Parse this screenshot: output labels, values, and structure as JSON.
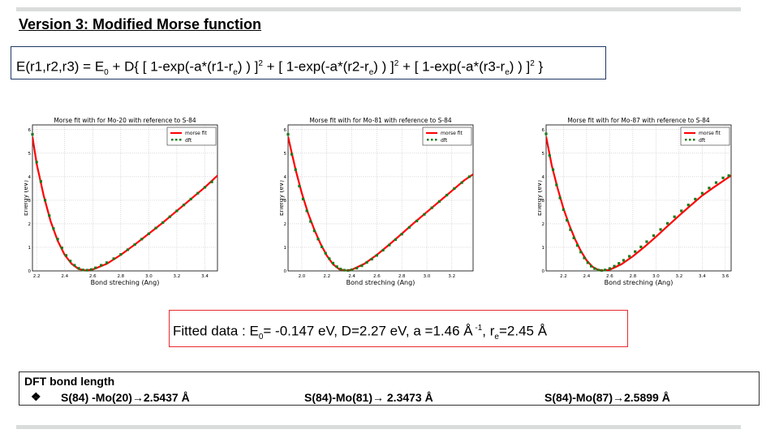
{
  "slide": {
    "title": "Version 3: Modified Morse function",
    "formula": {
      "p1": "E(r1,r2,r3) = E",
      "s1": "0",
      "p2": " + D{ [ 1-exp(-a*(r1-r",
      "s2": "e",
      "p3": ") ) ]",
      "e1": "2",
      "p4": " + [ 1-exp(-a*(r2-r",
      "s3": "e",
      "p5": ") ) ]",
      "e2": "2",
      "p6": " + [ 1-exp(-a*(r3-r",
      "s4": "e",
      "p7": ") ) ]",
      "e3": "2",
      "p8": " }"
    },
    "fitted": {
      "p1": "Fitted data : E",
      "s1": "0",
      "p2": "= -0.147 eV, D=2.27  eV, a =1.46  Å",
      "e1": " -1",
      "p3": ",  r",
      "s2": "e",
      "p4": "=2.45  Å"
    },
    "dft": {
      "title": "DFT bond length",
      "bullet": "❖",
      "entries": [
        "S(84) -Mo(20)→2.5437  Å",
        "S(84)-Mo(81)→ 2.3473  Å",
        "S(84)-Mo(87)→2.5899 Å"
      ]
    }
  },
  "colors": {
    "fit": "#ff0000",
    "dft": "#1a7a1a",
    "formula_border": "#1f3864",
    "fitted_border": "#e8292f",
    "rule": "#d9dcdb"
  },
  "chart_data": [
    {
      "type": "line",
      "title": "Morse fit with for Mo-20 with reference to S-84",
      "xlabel": "Bond streching (Ang)",
      "ylabel": "Energy (eV)",
      "xlim": [
        2.17,
        3.49
      ],
      "ylim": [
        0,
        6.2
      ],
      "xticks": [
        "2.2",
        "2.4",
        "2.6",
        "2.8",
        "3.0",
        "3.2",
        "3.4"
      ],
      "yticks": [
        "0",
        "1",
        "2",
        "3",
        "4",
        "5",
        "6"
      ],
      "grid": true,
      "legend_position": "top-right",
      "series": [
        {
          "name": "morse fit",
          "style": "line",
          "x": [
            2.17,
            2.2,
            2.25,
            2.3,
            2.35,
            2.4,
            2.45,
            2.5,
            2.55,
            2.6,
            2.7,
            2.8,
            2.9,
            3.0,
            3.1,
            3.2,
            3.3,
            3.4,
            3.49
          ],
          "y": [
            5.7,
            4.55,
            3.2,
            2.1,
            1.28,
            0.68,
            0.3,
            0.08,
            0.02,
            0.06,
            0.3,
            0.68,
            1.12,
            1.58,
            2.05,
            2.55,
            3.05,
            3.55,
            4.05
          ]
        },
        {
          "name": "dft",
          "style": "points",
          "x": [
            2.17,
            2.2,
            2.23,
            2.26,
            2.29,
            2.32,
            2.35,
            2.38,
            2.41,
            2.44,
            2.47,
            2.5,
            2.53,
            2.56,
            2.59,
            2.62,
            2.66,
            2.7,
            2.75,
            2.8,
            2.85,
            2.9,
            2.95,
            3.0,
            3.05,
            3.1,
            3.15,
            3.2,
            3.25,
            3.3,
            3.35,
            3.4,
            3.45
          ],
          "y": [
            5.8,
            4.62,
            3.8,
            3.0,
            2.35,
            1.8,
            1.35,
            0.98,
            0.66,
            0.42,
            0.24,
            0.11,
            0.04,
            0.03,
            0.06,
            0.13,
            0.24,
            0.35,
            0.52,
            0.7,
            0.9,
            1.12,
            1.35,
            1.58,
            1.82,
            2.05,
            2.3,
            2.55,
            2.8,
            3.05,
            3.3,
            3.55,
            3.78
          ]
        }
      ]
    },
    {
      "type": "line",
      "title": "Morse fit with for Mo-81 with reference to S-84",
      "xlabel": "Bond streching (Ang)",
      "ylabel": "Energy (eV)",
      "xlim": [
        1.89,
        3.37
      ],
      "ylim": [
        0,
        6.2
      ],
      "xticks": [
        "2.0",
        "2.2",
        "2.4",
        "2.6",
        "2.8",
        "3.0",
        "3.2"
      ],
      "yticks": [
        "0",
        "1",
        "2",
        "3",
        "4",
        "5",
        "6"
      ],
      "grid": true,
      "legend_position": "top-right",
      "series": [
        {
          "name": "morse fit",
          "style": "line",
          "x": [
            1.89,
            1.95,
            2.0,
            2.05,
            2.1,
            2.15,
            2.2,
            2.25,
            2.3,
            2.35,
            2.4,
            2.5,
            2.6,
            2.7,
            2.8,
            2.9,
            3.0,
            3.1,
            3.2,
            3.3,
            3.37
          ],
          "y": [
            5.7,
            4.3,
            3.3,
            2.45,
            1.75,
            1.15,
            0.65,
            0.28,
            0.07,
            0.01,
            0.05,
            0.3,
            0.68,
            1.12,
            1.58,
            2.05,
            2.5,
            2.95,
            3.4,
            3.85,
            4.1
          ]
        },
        {
          "name": "dft",
          "style": "points",
          "x": [
            1.89,
            1.92,
            1.95,
            1.98,
            2.01,
            2.04,
            2.07,
            2.1,
            2.13,
            2.16,
            2.19,
            2.22,
            2.25,
            2.28,
            2.31,
            2.34,
            2.37,
            2.4,
            2.44,
            2.48,
            2.52,
            2.56,
            2.6,
            2.65,
            2.7,
            2.75,
            2.8,
            2.86,
            2.92,
            2.98,
            3.04,
            3.1,
            3.16,
            3.22,
            3.28,
            3.34
          ],
          "y": [
            5.8,
            4.95,
            4.3,
            3.6,
            3.05,
            2.55,
            2.1,
            1.7,
            1.35,
            1.02,
            0.75,
            0.52,
            0.33,
            0.18,
            0.08,
            0.03,
            0.02,
            0.05,
            0.12,
            0.22,
            0.36,
            0.5,
            0.66,
            0.88,
            1.1,
            1.33,
            1.56,
            1.85,
            2.12,
            2.4,
            2.68,
            2.95,
            3.22,
            3.5,
            3.75,
            4.0
          ]
        }
      ]
    },
    {
      "type": "line",
      "title": "Morse fit with for Mo-87 with reference to S-84",
      "xlabel": "Bond streching (Ang)",
      "ylabel": "Energy (eV)",
      "xlim": [
        2.05,
        3.65
      ],
      "ylim": [
        0,
        6.2
      ],
      "xticks": [
        "2.2",
        "2.4",
        "2.6",
        "2.8",
        "3.0",
        "3.2",
        "3.4",
        "3.6"
      ],
      "yticks": [
        "0",
        "1",
        "2",
        "3",
        "4",
        "5",
        "6"
      ],
      "grid": true,
      "legend_position": "top-right",
      "series": [
        {
          "name": "morse fit",
          "style": "line",
          "x": [
            2.05,
            2.1,
            2.15,
            2.2,
            2.25,
            2.3,
            2.35,
            2.4,
            2.45,
            2.5,
            2.55,
            2.6,
            2.7,
            2.8,
            2.9,
            3.0,
            3.1,
            3.2,
            3.3,
            3.4,
            3.5,
            3.65
          ],
          "y": [
            5.7,
            4.45,
            3.5,
            2.65,
            1.95,
            1.35,
            0.85,
            0.45,
            0.18,
            0.04,
            0.01,
            0.05,
            0.28,
            0.62,
            1.02,
            1.45,
            1.9,
            2.35,
            2.78,
            3.2,
            3.55,
            4.05
          ]
        },
        {
          "name": "dft",
          "style": "points",
          "x": [
            2.05,
            2.08,
            2.11,
            2.14,
            2.17,
            2.2,
            2.23,
            2.26,
            2.29,
            2.32,
            2.35,
            2.38,
            2.41,
            2.44,
            2.47,
            2.5,
            2.53,
            2.56,
            2.6,
            2.64,
            2.68,
            2.72,
            2.77,
            2.82,
            2.87,
            2.92,
            2.98,
            3.04,
            3.1,
            3.16,
            3.22,
            3.28,
            3.34,
            3.4,
            3.46,
            3.52,
            3.58,
            3.63
          ],
          "y": [
            5.82,
            4.9,
            4.3,
            3.65,
            3.1,
            2.6,
            2.15,
            1.75,
            1.4,
            1.08,
            0.8,
            0.55,
            0.35,
            0.2,
            0.1,
            0.04,
            0.02,
            0.04,
            0.1,
            0.2,
            0.32,
            0.45,
            0.62,
            0.82,
            1.02,
            1.24,
            1.5,
            1.76,
            2.02,
            2.3,
            2.55,
            2.8,
            3.05,
            3.3,
            3.52,
            3.75,
            3.95,
            4.05
          ]
        }
      ]
    }
  ]
}
